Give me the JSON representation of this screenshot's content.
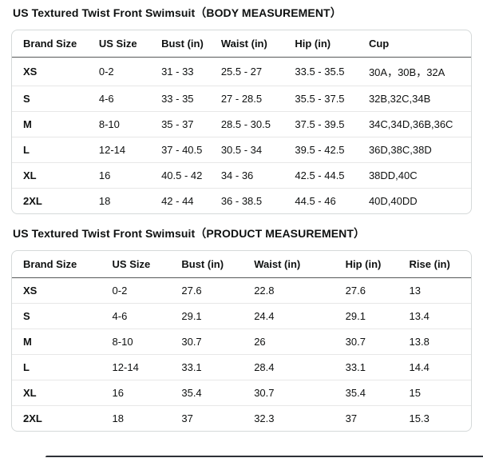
{
  "page": {
    "background": "#ffffff",
    "text_color": "#0f1111",
    "table_border_color": "#d5d9d9",
    "header_rule_color": "#565959",
    "row_rule_color": "#e7e7e7"
  },
  "tables": [
    {
      "title": "US Textured Twist Front Swimsuit（BODY MEASUREMENT）",
      "columns": [
        "Brand Size",
        "US Size",
        "Bust (in)",
        "Waist (in)",
        "Hip (in)",
        "Cup"
      ],
      "col_widths": [
        "16.5%",
        "13.6%",
        "13.0%",
        "16.1%",
        "16.1%",
        "24.7%"
      ],
      "rows": [
        [
          "XS",
          "0-2",
          "31 - 33",
          "25.5 - 27",
          "33.5 - 35.5",
          "30A，30B，32A"
        ],
        [
          "S",
          "4-6",
          "33 - 35",
          "27 - 28.5",
          "35.5 - 37.5",
          "32B,32C,34B"
        ],
        [
          "M",
          "8-10",
          "35 - 37",
          "28.5 - 30.5",
          "37.5 - 39.5",
          "34C,34D,36B,36C"
        ],
        [
          "L",
          "12-14",
          "37 - 40.5",
          "30.5 - 34",
          "39.5 - 42.5",
          "36D,38C,38D"
        ],
        [
          "XL",
          "16",
          "40.5 - 42",
          "34 - 36",
          "42.5 - 44.5",
          "38DD,40C"
        ],
        [
          "2XL",
          "18",
          "42 - 44",
          "36 - 38.5",
          "44.5 - 46",
          "40D,40DD"
        ]
      ]
    },
    {
      "title": "US Textured Twist Front Swimsuit（PRODUCT MEASUREMENT）",
      "columns": [
        "Brand Size",
        "US Size",
        "Bust (in)",
        "Waist (in)",
        "Hip (in)",
        "Rise (in)"
      ],
      "col_widths": [
        "19.4%",
        "15.1%",
        "15.8%",
        "19.9%",
        "13.9%",
        "15.9%"
      ],
      "rows": [
        [
          "XS",
          "0-2",
          "27.6",
          "22.8",
          "27.6",
          "13"
        ],
        [
          "S",
          "4-6",
          "29.1",
          "24.4",
          "29.1",
          "13.4"
        ],
        [
          "M",
          "8-10",
          "30.7",
          "26",
          "30.7",
          "13.8"
        ],
        [
          "L",
          "12-14",
          "33.1",
          "28.4",
          "33.1",
          "14.4"
        ],
        [
          "XL",
          "16",
          "35.4",
          "30.7",
          "35.4",
          "15"
        ],
        [
          "2XL",
          "18",
          "37",
          "32.3",
          "37",
          "15.3"
        ]
      ]
    }
  ]
}
